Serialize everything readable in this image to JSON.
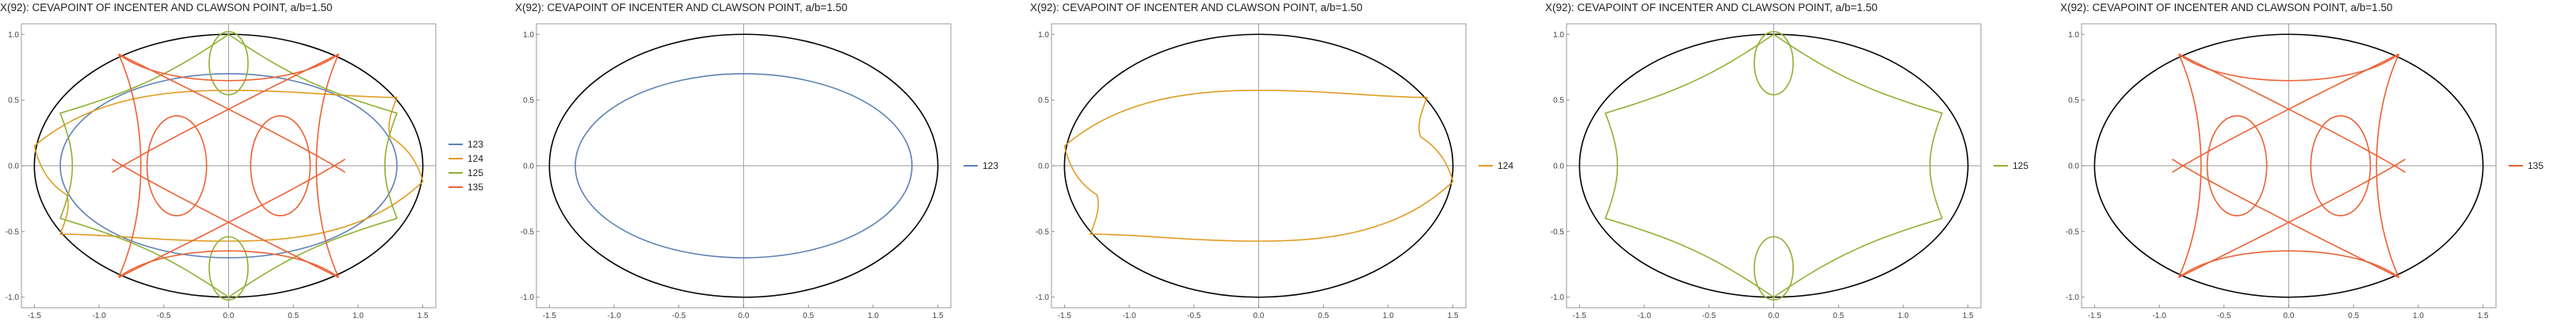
{
  "chart_data": [
    {
      "type": "line",
      "title": "X(92): CEVAPOINT OF INCENTER AND CLAWSON POINT, a/b=1.50",
      "xlim": [
        -1.6,
        1.6
      ],
      "ylim": [
        -1.08,
        1.08
      ],
      "x_ticks": [
        -1.5,
        -1.0,
        -0.5,
        0.0,
        0.5,
        1.0,
        1.5
      ],
      "x_tick_labels": [
        "-1.5",
        "-1.0",
        "-0.5",
        "0.0",
        "0.5",
        "1.0",
        "1.5"
      ],
      "y_ticks": [
        -1.0,
        -0.5,
        0.0,
        0.5,
        1.0
      ],
      "y_tick_labels": [
        "-1.0",
        "-0.5",
        "0.0",
        "0.5",
        "1.0"
      ],
      "ellipse": {
        "a": 1.5,
        "b": 1.0,
        "color": "#000000"
      },
      "legend": [
        "123",
        "124",
        "125",
        "135"
      ],
      "series": [
        {
          "name": "123",
          "color": "#5E81B5",
          "shape": "ellipse",
          "rx": 1.3,
          "ry": 0.7
        },
        {
          "name": "124",
          "color": "#E19C24",
          "shape": "lens",
          "tip": 1.5,
          "half_width": 0.57
        },
        {
          "name": "125",
          "color": "#8FB032",
          "shape": "astroid",
          "vertices": [
            [
              -1.3,
              0.4
            ],
            [
              0.0,
              1.0
            ],
            [
              1.3,
              0.4
            ],
            [
              1.3,
              -0.4
            ],
            [
              0.0,
              -1.0
            ],
            [
              -1.3,
              -0.4
            ]
          ]
        },
        {
          "name": "135",
          "color": "#EB6235",
          "shape": "ovals",
          "oval_centers": [
            [
              -0.4,
              0.0
            ],
            [
              0.4,
              0.0
            ]
          ],
          "oval_rx": 0.23,
          "oval_ry": 0.38,
          "corners": [
            [
              -0.85,
              0.85
            ],
            [
              0.85,
              0.85
            ],
            [
              0.85,
              -0.85
            ],
            [
              -0.85,
              -0.85
            ]
          ]
        }
      ]
    },
    {
      "type": "line",
      "title": "X(92): CEVAPOINT OF INCENTER AND CLAWSON POINT, a/b=1.50",
      "xlim": [
        -1.6,
        1.6
      ],
      "ylim": [
        -1.08,
        1.08
      ],
      "x_ticks": [
        -1.5,
        -1.0,
        -0.5,
        0.0,
        0.5,
        1.0,
        1.5
      ],
      "x_tick_labels": [
        "-1.5",
        "-1.0",
        "-0.5",
        "0.0",
        "0.5",
        "1.0",
        "1.5"
      ],
      "y_ticks": [
        -1.0,
        -0.5,
        0.0,
        0.5,
        1.0
      ],
      "y_tick_labels": [
        "-1.0",
        "-0.5",
        "0.0",
        "0.5",
        "1.0"
      ],
      "ellipse": {
        "a": 1.5,
        "b": 1.0,
        "color": "#000000"
      },
      "legend": [
        "123"
      ],
      "series": [
        {
          "name": "123",
          "color": "#5E81B5",
          "shape": "ellipse",
          "rx": 1.3,
          "ry": 0.7
        }
      ]
    },
    {
      "type": "line",
      "title": "X(92): CEVAPOINT OF INCENTER AND CLAWSON POINT, a/b=1.50",
      "xlim": [
        -1.6,
        1.6
      ],
      "ylim": [
        -1.08,
        1.08
      ],
      "x_ticks": [
        -1.5,
        -1.0,
        -0.5,
        0.0,
        0.5,
        1.0,
        1.5
      ],
      "x_tick_labels": [
        "-1.5",
        "-1.0",
        "-0.5",
        "0.0",
        "0.5",
        "1.0",
        "1.5"
      ],
      "y_ticks": [
        -1.0,
        -0.5,
        0.0,
        0.5,
        1.0
      ],
      "y_tick_labels": [
        "-1.0",
        "-0.5",
        "0.0",
        "0.5",
        "1.0"
      ],
      "ellipse": {
        "a": 1.5,
        "b": 1.0,
        "color": "#000000"
      },
      "legend": [
        "124"
      ],
      "series": [
        {
          "name": "124",
          "color": "#E19C24",
          "shape": "lens",
          "tip": 1.5,
          "half_width": 0.57
        }
      ]
    },
    {
      "type": "line",
      "title": "X(92): CEVAPOINT OF INCENTER AND CLAWSON POINT, a/b=1.50",
      "xlim": [
        -1.6,
        1.6
      ],
      "ylim": [
        -1.08,
        1.08
      ],
      "x_ticks": [
        -1.5,
        -1.0,
        -0.5,
        0.0,
        0.5,
        1.0,
        1.5
      ],
      "x_tick_labels": [
        "-1.5",
        "-1.0",
        "-0.5",
        "0.0",
        "0.5",
        "1.0",
        "1.5"
      ],
      "y_ticks": [
        -1.0,
        -0.5,
        0.0,
        0.5,
        1.0
      ],
      "y_tick_labels": [
        "-1.0",
        "-0.5",
        "0.0",
        "0.5",
        "1.0"
      ],
      "ellipse": {
        "a": 1.5,
        "b": 1.0,
        "color": "#000000"
      },
      "legend": [
        "125"
      ],
      "series": [
        {
          "name": "125",
          "color": "#8FB032",
          "shape": "astroid",
          "vertices": [
            [
              -1.3,
              0.4
            ],
            [
              0.0,
              1.0
            ],
            [
              1.3,
              0.4
            ],
            [
              1.3,
              -0.4
            ],
            [
              0.0,
              -1.0
            ],
            [
              -1.3,
              -0.4
            ]
          ]
        }
      ]
    },
    {
      "type": "line",
      "title": "X(92): CEVAPOINT OF INCENTER AND CLAWSON POINT, a/b=1.50",
      "xlim": [
        -1.6,
        1.6
      ],
      "ylim": [
        -1.08,
        1.08
      ],
      "x_ticks": [
        -1.5,
        -1.0,
        -0.5,
        0.0,
        0.5,
        1.0,
        1.5
      ],
      "x_tick_labels": [
        "-1.5",
        "-1.0",
        "-0.5",
        "0.0",
        "0.5",
        "1.0",
        "1.5"
      ],
      "y_ticks": [
        -1.0,
        -0.5,
        0.0,
        0.5,
        1.0
      ],
      "y_tick_labels": [
        "-1.0",
        "-0.5",
        "0.0",
        "0.5",
        "1.0"
      ],
      "ellipse": {
        "a": 1.5,
        "b": 1.0,
        "color": "#000000"
      },
      "legend": [
        "135"
      ],
      "series": [
        {
          "name": "135",
          "color": "#EB6235",
          "shape": "ovals",
          "oval_centers": [
            [
              -0.4,
              0.0
            ],
            [
              0.4,
              0.0
            ]
          ],
          "oval_rx": 0.23,
          "oval_ry": 0.38,
          "corners": [
            [
              -0.85,
              0.85
            ],
            [
              0.85,
              0.85
            ],
            [
              0.85,
              -0.85
            ],
            [
              -0.85,
              -0.85
            ]
          ]
        }
      ]
    }
  ]
}
